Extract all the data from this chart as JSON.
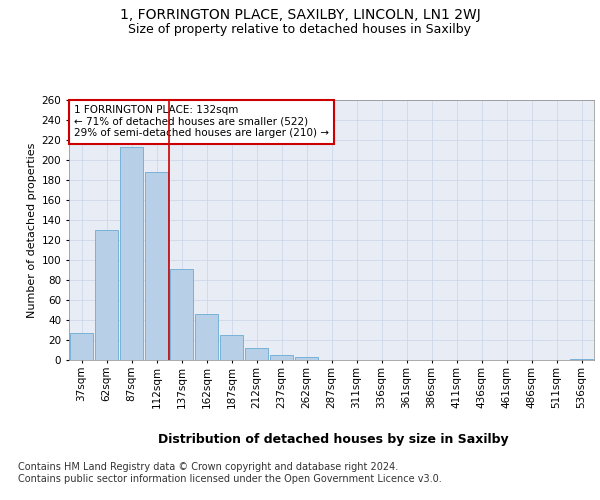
{
  "title1": "1, FORRINGTON PLACE, SAXILBY, LINCOLN, LN1 2WJ",
  "title2": "Size of property relative to detached houses in Saxilby",
  "xlabel": "Distribution of detached houses by size in Saxilby",
  "ylabel": "Number of detached properties",
  "categories": [
    "37sqm",
    "62sqm",
    "87sqm",
    "112sqm",
    "137sqm",
    "162sqm",
    "187sqm",
    "212sqm",
    "237sqm",
    "262sqm",
    "287sqm",
    "311sqm",
    "336sqm",
    "361sqm",
    "386sqm",
    "411sqm",
    "436sqm",
    "461sqm",
    "486sqm",
    "511sqm",
    "536sqm"
  ],
  "values": [
    27,
    130,
    213,
    188,
    91,
    46,
    25,
    12,
    5,
    3,
    0,
    0,
    0,
    0,
    0,
    0,
    0,
    0,
    0,
    0,
    1
  ],
  "bar_color": "#b8cfe8",
  "bar_edge_color": "#6aaad4",
  "vline_color": "#cc0000",
  "annotation_text": "1 FORRINGTON PLACE: 132sqm\n← 71% of detached houses are smaller (522)\n29% of semi-detached houses are larger (210) →",
  "annotation_box_color": "#ffffff",
  "annotation_box_edge": "#cc0000",
  "ylim": [
    0,
    260
  ],
  "yticks": [
    0,
    20,
    40,
    60,
    80,
    100,
    120,
    140,
    160,
    180,
    200,
    220,
    240,
    260
  ],
  "grid_color": "#c8d4e8",
  "background_color": "#e8edf5",
  "footer": "Contains HM Land Registry data © Crown copyright and database right 2024.\nContains public sector information licensed under the Open Government Licence v3.0.",
  "title1_fontsize": 10,
  "title2_fontsize": 9,
  "xlabel_fontsize": 9,
  "ylabel_fontsize": 8,
  "footer_fontsize": 7,
  "tick_fontsize": 7.5,
  "ytick_fontsize": 7.5
}
